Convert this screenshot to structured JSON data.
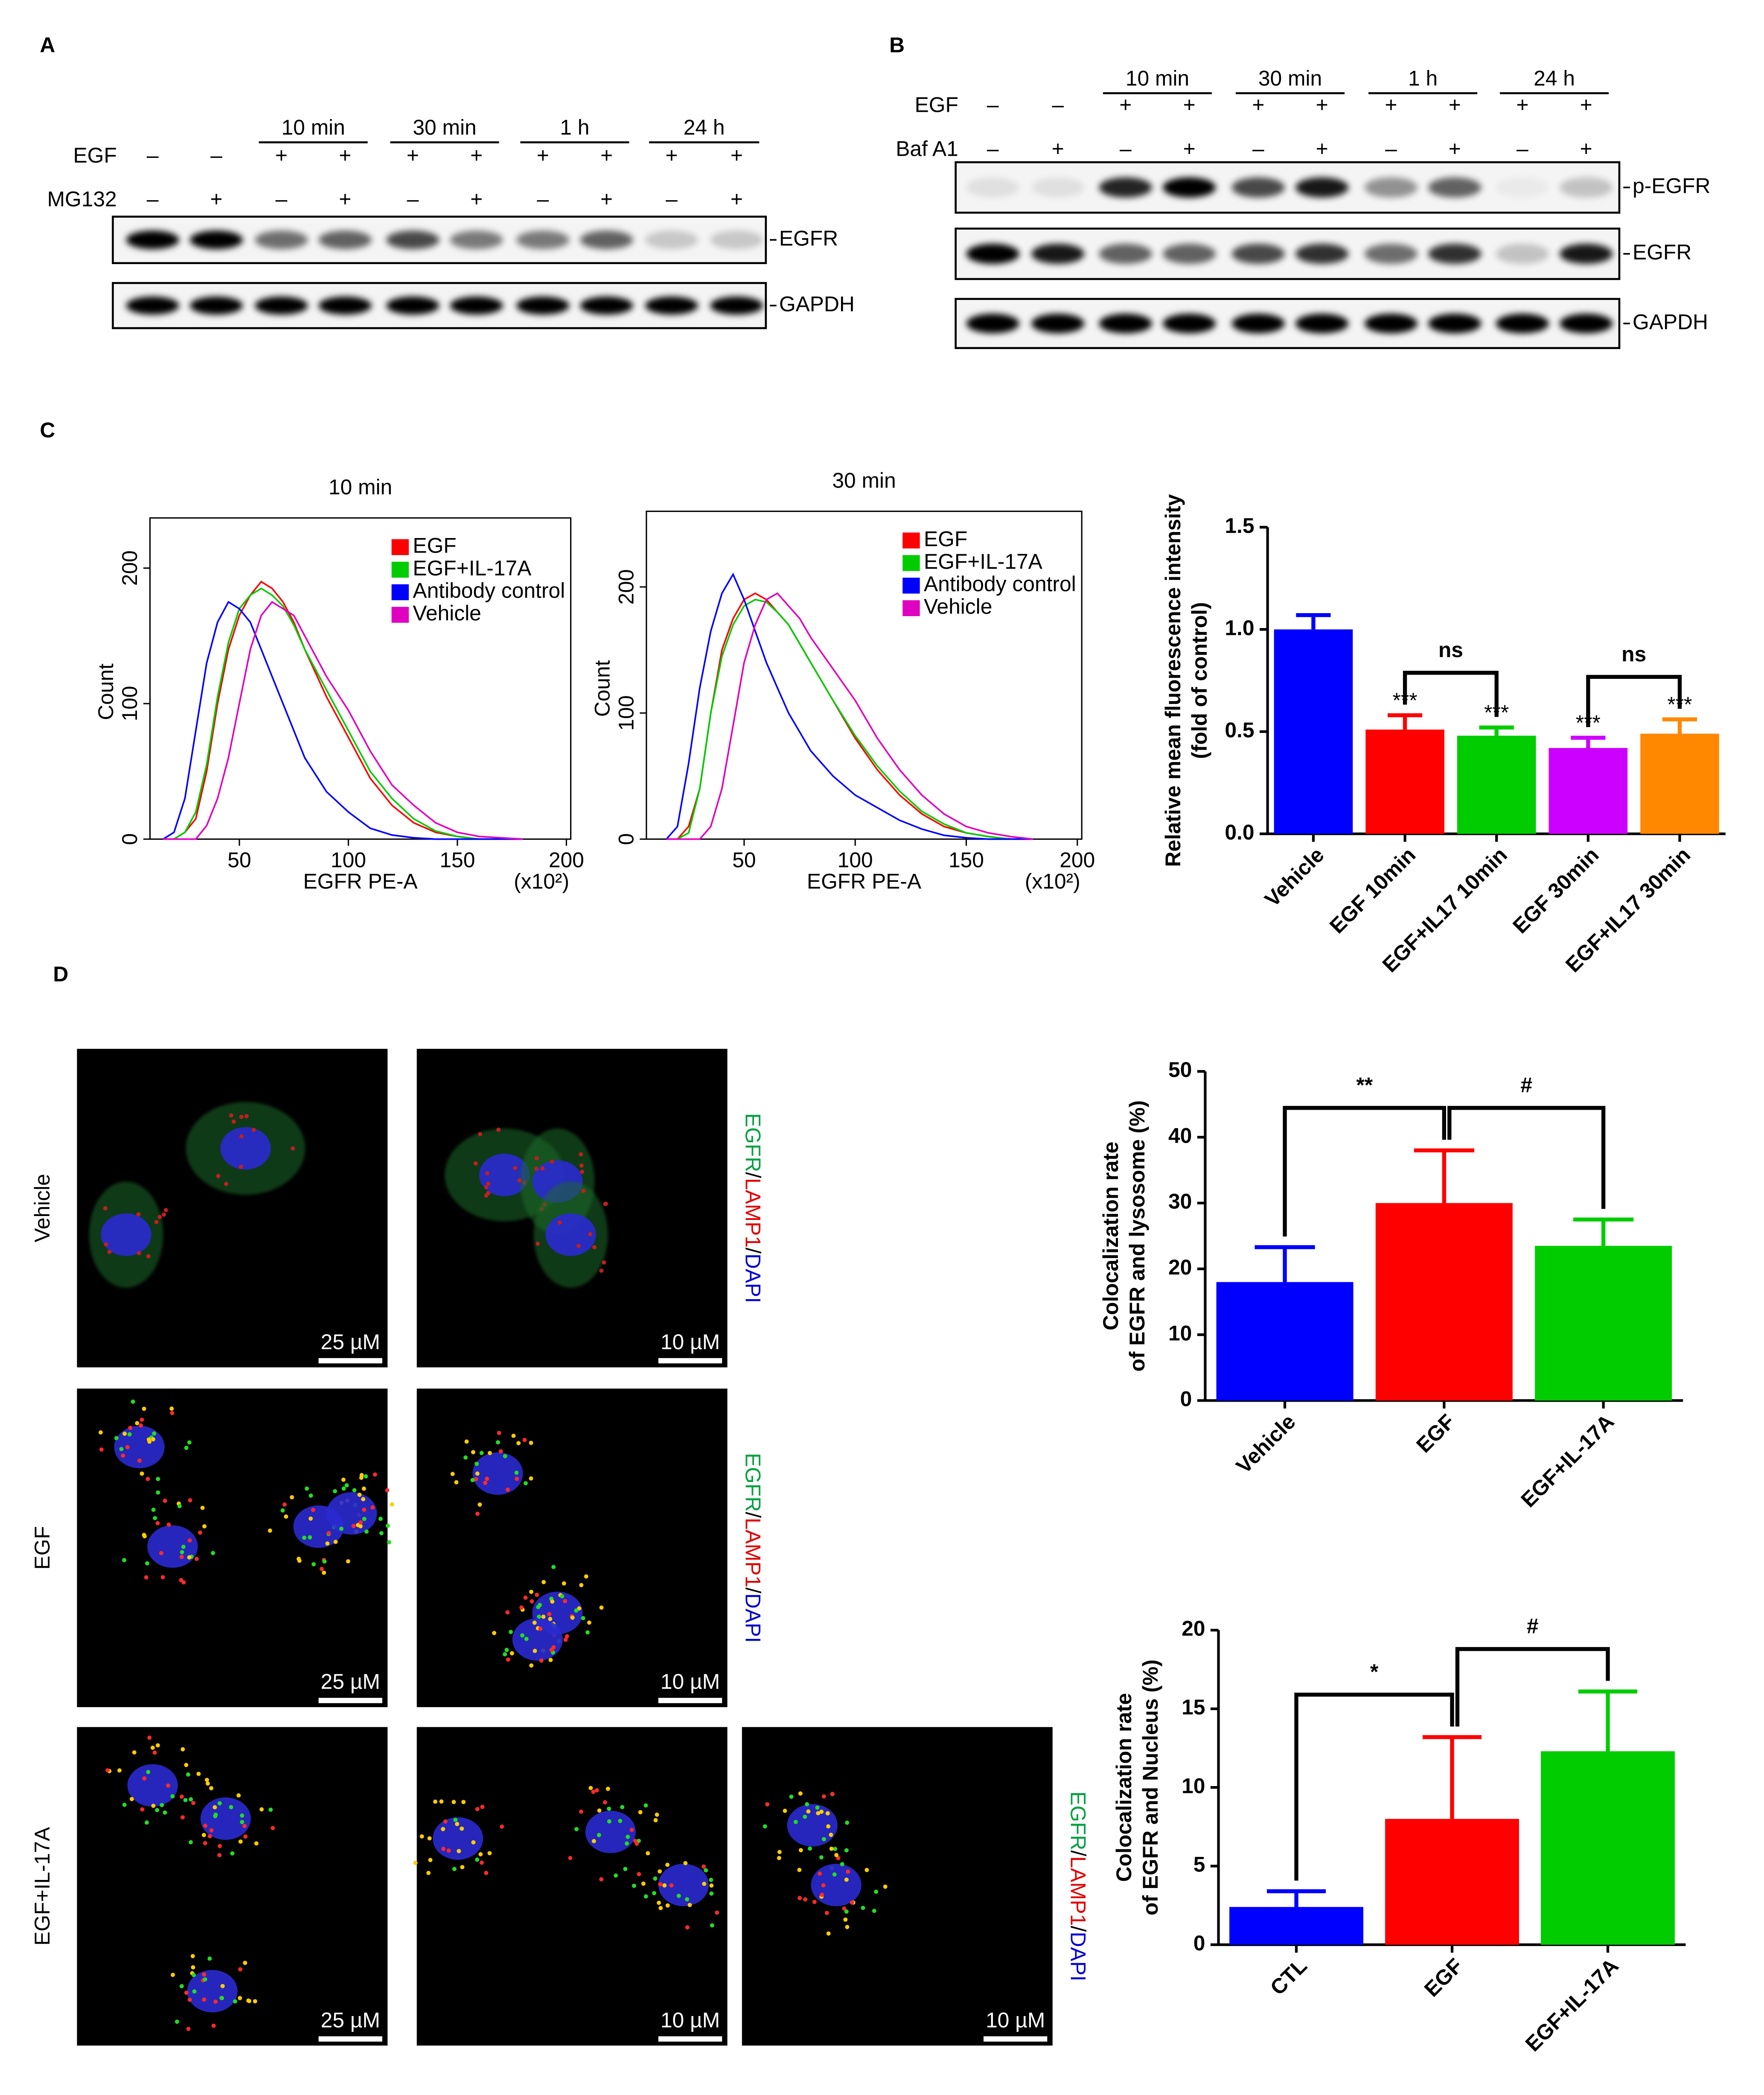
{
  "panel_labels": [
    "A",
    "B",
    "C",
    "D"
  ],
  "blot_a": {
    "time_labels": [
      "10 min",
      "30 min",
      "1 h",
      "24 h"
    ],
    "row_labels": [
      "EGF",
      "MG132"
    ],
    "signs": [
      [
        "–",
        "–",
        "+",
        "+",
        "+",
        "+",
        "+",
        "+",
        "+",
        "+"
      ],
      [
        "–",
        "+",
        "–",
        "+",
        "–",
        "+",
        "–",
        "+",
        "–",
        "+"
      ]
    ],
    "band_labels": [
      "EGFR",
      "GAPDH"
    ]
  },
  "blot_b": {
    "time_labels": [
      "10 min",
      "30 min",
      "1 h",
      "24 h"
    ],
    "row_labels": [
      "EGF",
      "Baf A1"
    ],
    "signs": [
      [
        "–",
        "–",
        "+",
        "+",
        "+",
        "+",
        "+",
        "+",
        "+",
        "+"
      ],
      [
        "–",
        "+",
        "–",
        "+",
        "–",
        "+",
        "–",
        "+",
        "–",
        "+"
      ]
    ],
    "band_labels": [
      "p-EGFR",
      "EGFR",
      "GAPDH"
    ]
  },
  "chart_data": [
    {
      "type": "line",
      "title": "10 min",
      "x_label": "EGFR PE-A",
      "x_unit": "(x10²)",
      "y_label": "Count",
      "x": [
        15,
        20,
        25,
        30,
        35,
        40,
        45,
        50,
        55,
        60,
        65,
        70,
        75,
        80,
        90,
        100,
        110,
        120,
        130,
        140,
        150,
        160,
        170,
        180
      ],
      "series": [
        {
          "name": "EGF",
          "color": "#ff0000",
          "values": [
            0,
            0,
            5,
            15,
            50,
            100,
            140,
            165,
            180,
            190,
            185,
            175,
            160,
            140,
            105,
            75,
            45,
            25,
            12,
            5,
            2,
            0,
            0,
            0
          ]
        },
        {
          "name": "EGF+IL-17A",
          "color": "#00cc00",
          "values": [
            0,
            0,
            5,
            20,
            55,
            105,
            145,
            170,
            180,
            185,
            180,
            172,
            158,
            140,
            110,
            80,
            50,
            30,
            15,
            6,
            2,
            0,
            0,
            0
          ]
        },
        {
          "name": "Antibody control",
          "color": "#0000ff",
          "values": [
            0,
            5,
            30,
            80,
            130,
            160,
            175,
            170,
            160,
            140,
            120,
            100,
            80,
            60,
            35,
            20,
            8,
            3,
            1,
            0,
            0,
            0,
            0,
            0
          ]
        },
        {
          "name": "Vehicle",
          "color": "#e000c0",
          "values": [
            0,
            0,
            0,
            0,
            10,
            30,
            60,
            100,
            140,
            165,
            175,
            170,
            165,
            150,
            120,
            95,
            65,
            40,
            25,
            12,
            5,
            2,
            1,
            0
          ]
        }
      ],
      "xlim": [
        9,
        202
      ],
      "ylim": [
        0,
        237
      ],
      "xticks": [
        50,
        100,
        150,
        200
      ],
      "yticks": [
        0,
        100,
        200
      ],
      "legend": "upper right"
    },
    {
      "type": "line",
      "title": "30 min",
      "x_label": "EGFR PE-A",
      "x_unit": "(x10²)",
      "y_label": "Count",
      "x": [
        15,
        20,
        25,
        30,
        35,
        40,
        45,
        50,
        55,
        60,
        65,
        70,
        75,
        80,
        90,
        100,
        110,
        120,
        130,
        140,
        150,
        160,
        170,
        180
      ],
      "series": [
        {
          "name": "EGF",
          "color": "#ff0000",
          "values": [
            0,
            0,
            10,
            40,
            100,
            150,
            175,
            190,
            195,
            190,
            180,
            170,
            155,
            140,
            110,
            80,
            55,
            35,
            20,
            10,
            5,
            2,
            0,
            0
          ]
        },
        {
          "name": "EGF+IL-17A",
          "color": "#00cc00",
          "values": [
            0,
            0,
            5,
            40,
            100,
            145,
            170,
            185,
            190,
            188,
            180,
            170,
            155,
            140,
            110,
            82,
            58,
            38,
            22,
            12,
            5,
            2,
            0,
            0
          ]
        },
        {
          "name": "Antibody control",
          "color": "#0000ff",
          "values": [
            0,
            10,
            60,
            120,
            165,
            195,
            210,
            190,
            165,
            140,
            120,
            100,
            85,
            70,
            50,
            35,
            25,
            15,
            8,
            3,
            1,
            0,
            0,
            0
          ]
        },
        {
          "name": "Vehicle",
          "color": "#e000c0",
          "values": [
            0,
            0,
            0,
            0,
            10,
            40,
            90,
            140,
            170,
            190,
            195,
            185,
            175,
            160,
            135,
            110,
            80,
            55,
            35,
            20,
            10,
            5,
            2,
            0
          ]
        }
      ],
      "xlim": [
        6,
        202
      ],
      "ylim": [
        0,
        260
      ],
      "xticks": [
        50,
        100,
        150,
        200
      ],
      "yticks": [
        0,
        100,
        200
      ],
      "legend": "upper right"
    },
    {
      "type": "bar",
      "y_label": [
        "Relative mean fluorescence intensity",
        "(fold of control)"
      ],
      "categories": [
        "Vehicle",
        "EGF 10min",
        "EGF+IL17 10min",
        "EGF 30min",
        "EGF+IL17 30min"
      ],
      "values": [
        1.0,
        0.51,
        0.48,
        0.42,
        0.49
      ],
      "errors": [
        0.07,
        0.07,
        0.04,
        0.05,
        0.07
      ],
      "colors": [
        "#0000ff",
        "#ff0000",
        "#00cc00",
        "#cc00ff",
        "#ff8800"
      ],
      "sig_labels": [
        null,
        "***",
        "***",
        "***",
        "***"
      ],
      "bracket_labels": [
        null,
        "ns",
        null,
        "ns"
      ],
      "ylim": [
        0,
        1.5
      ],
      "yticks": [
        {
          "value": 0,
          "label": "0.0"
        },
        {
          "value": 0.5,
          "label": "0.5"
        },
        {
          "value": 1,
          "label": "1.0"
        },
        {
          "value": 1.5,
          "label": "1.5"
        }
      ]
    },
    {
      "type": "bar",
      "y_label": [
        "Colocalization rate",
        "of EGFR and lysosome (%)"
      ],
      "categories": [
        "Vehicle",
        "EGF",
        "EGF+IL-17A"
      ],
      "values": [
        18,
        30,
        23.5
      ],
      "errors": [
        5.3,
        8,
        4
      ],
      "colors": [
        "#0000ff",
        "#ff0000",
        "#00cc00"
      ],
      "bracket_labels": [
        "**",
        "#"
      ],
      "ylim": [
        0,
        50
      ],
      "yticks": [
        0,
        10,
        20,
        30,
        40,
        50
      ]
    },
    {
      "type": "bar",
      "y_label": [
        "Colocalization rate",
        "of EGFR and Nucleus (%)"
      ],
      "categories": [
        "CTL",
        "EGF",
        "EGF+IL-17A"
      ],
      "values": [
        2.4,
        8,
        12.3
      ],
      "errors": [
        1,
        5.2,
        3.8
      ],
      "colors": [
        "#0000ff",
        "#ff0000",
        "#00cc00"
      ],
      "bracket_labels": [
        "*",
        "#"
      ],
      "ylim": [
        0,
        20
      ],
      "yticks": [
        0,
        5,
        10,
        15,
        20
      ]
    }
  ],
  "microscopy": {
    "row_labels": [
      "Vehicle",
      "EGF",
      "EGF+IL-17A"
    ],
    "stain": [
      "EGFR",
      "/",
      "LAMP1",
      "/",
      "DAPI"
    ],
    "scale_labels": [
      [
        "25 µM",
        "10 µM"
      ],
      [
        "25 µM",
        "10 µM"
      ],
      [
        "25 µM",
        "10 µM",
        "10 µM"
      ]
    ]
  }
}
